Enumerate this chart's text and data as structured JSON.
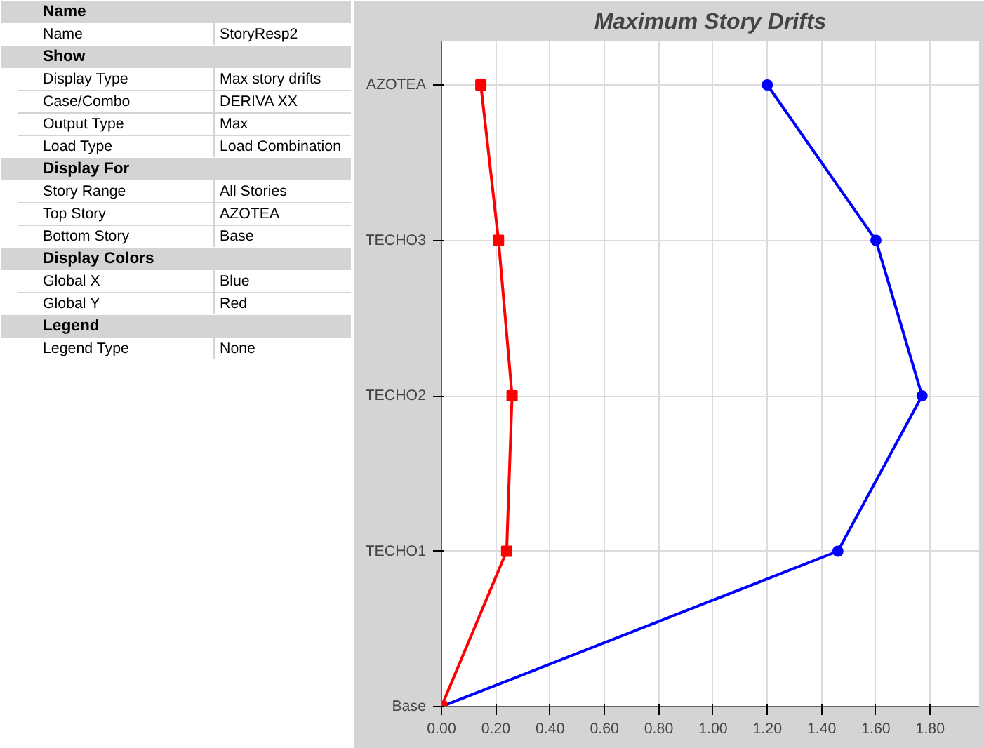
{
  "chart_data": [
    {
      "type": "other",
      "title": "Name",
      "annotations": [
        "Name",
        "StoryResp2"
      ]
    },
    {
      "type": "other",
      "title": "Show",
      "annotations": [
        "Display Type",
        "Max story drifts",
        "Case/Combo",
        "DERIVA XX",
        "Output Type",
        "Max",
        "Load Type",
        "Load Combination"
      ]
    },
    {
      "type": "other",
      "title": "Display For",
      "annotations": [
        "Story Range",
        "All Stories",
        "Top Story",
        "AZOTEA",
        "Bottom Story",
        "Base"
      ]
    },
    {
      "type": "other",
      "title": "Display Colors",
      "annotations": [
        "Global X",
        "Blue",
        "Global Y",
        "Red"
      ]
    },
    {
      "type": "other",
      "title": "Legend",
      "annotations": [
        "Legend Type",
        "None"
      ]
    },
    {
      "type": "line",
      "title": "Maximum Story Drifts",
      "orientation": "horizontal",
      "categories": [
        "AZOTEA",
        "TECHO3",
        "TECHO2",
        "TECHO1",
        "Base"
      ],
      "series": [
        {
          "color": "#0000ff",
          "marker": "circle",
          "values": [
            1.2,
            1.6,
            1.77,
            1.46,
            0
          ]
        },
        {
          "color": "#ff0000",
          "marker": "square",
          "values": [
            0.145,
            0.21,
            0.26,
            0.24,
            0
          ]
        }
      ],
      "xlim": [
        0,
        1.98
      ],
      "xticks": [
        {
          "value": 0,
          "label": "0.00"
        },
        {
          "value": 0.2,
          "label": "0.20"
        },
        {
          "value": 0.4,
          "label": "0.40"
        },
        {
          "value": 0.6,
          "label": "0.60"
        },
        {
          "value": 0.8,
          "label": "0.80"
        },
        {
          "value": 1.0,
          "label": "1.00"
        },
        {
          "value": 1.2,
          "label": "1.20"
        },
        {
          "value": 1.4,
          "label": "1.40"
        },
        {
          "value": 1.6,
          "label": "1.60"
        },
        {
          "value": 1.8,
          "label": "1.80"
        }
      ],
      "grid": true
    }
  ]
}
